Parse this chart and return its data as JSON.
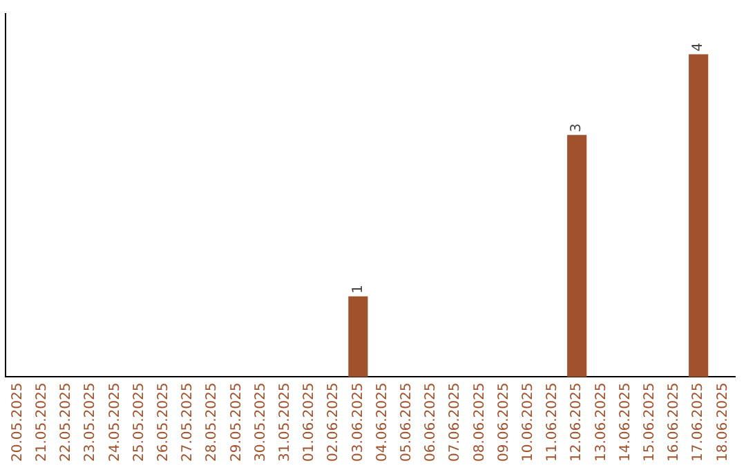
{
  "chart_data": {
    "type": "bar",
    "categories": [
      "20.05.2025",
      "21.05.2025",
      "22.05.2025",
      "23.05.2025",
      "24.05.2025",
      "25.05.2025",
      "26.05.2025",
      "27.05.2025",
      "28.05.2025",
      "29.05.2025",
      "30.05.2025",
      "31.05.2025",
      "01.06.2025",
      "02.06.2025",
      "03.06.2025",
      "04.06.2025",
      "05.06.2025",
      "06.06.2025",
      "07.06.2025",
      "08.06.2025",
      "09.06.2025",
      "10.06.2025",
      "11.06.2025",
      "12.06.2025",
      "13.06.2025",
      "14.06.2025",
      "15.06.2025",
      "16.06.2025",
      "17.06.2025",
      "18.06.2025"
    ],
    "values": [
      null,
      null,
      null,
      null,
      null,
      null,
      null,
      null,
      null,
      null,
      null,
      null,
      null,
      null,
      1,
      null,
      null,
      null,
      null,
      null,
      null,
      null,
      null,
      3,
      null,
      null,
      null,
      null,
      4,
      null
    ],
    "color": "#a0522d",
    "data_labels": true,
    "grid": false,
    "legend": false
  }
}
